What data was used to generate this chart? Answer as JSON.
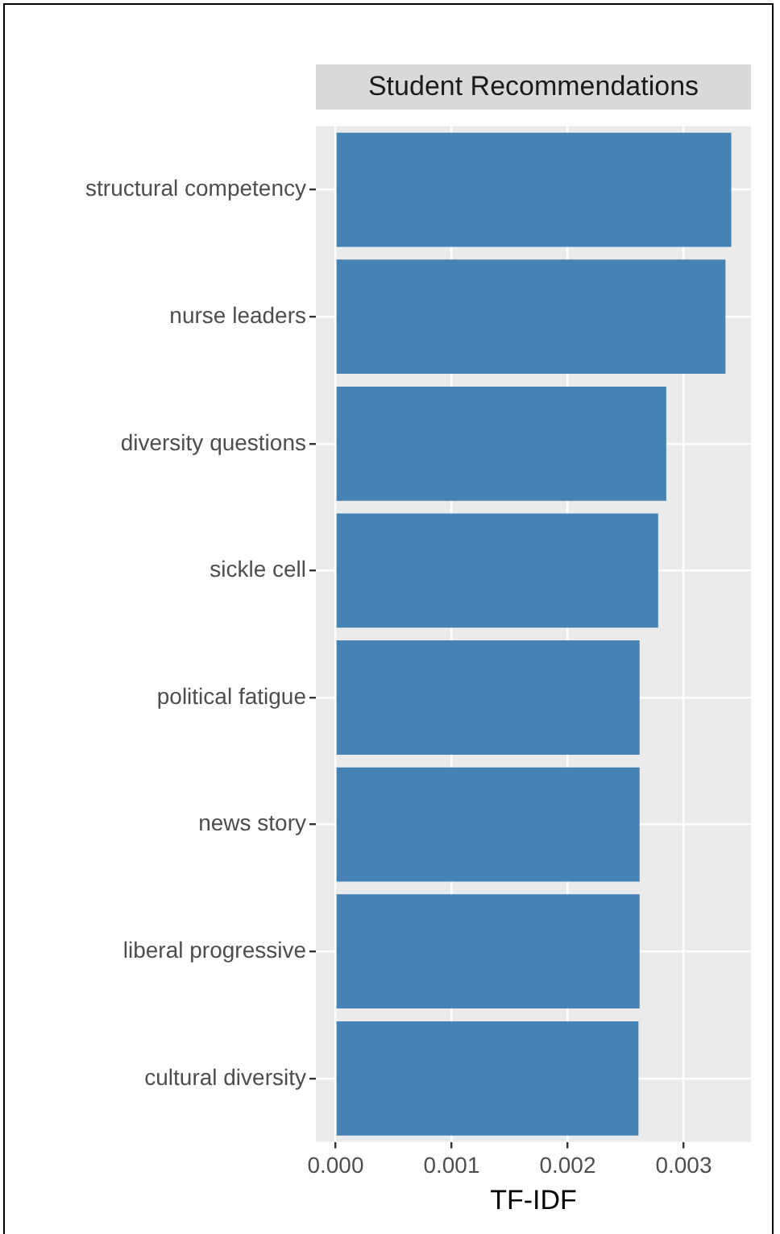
{
  "chart_data": {
    "type": "bar",
    "orientation": "horizontal",
    "title": "Student Recommendations",
    "xlabel": "TF-IDF",
    "categories": [
      "structural competency",
      "nurse leaders",
      "diversity questions",
      "sickle cell",
      "political fatigue",
      "news story",
      "liberal progressive",
      "cultural diversity"
    ],
    "values": [
      0.00341,
      0.00336,
      0.00285,
      0.00278,
      0.00262,
      0.00262,
      0.00262,
      0.00261
    ],
    "color": "#4682b4",
    "xlim": [
      -0.00017,
      0.00358
    ],
    "xticks": [
      {
        "value": 0,
        "label": "0.000"
      },
      {
        "value": 0.001,
        "label": "0.001"
      },
      {
        "value": 0.002,
        "label": "0.002"
      },
      {
        "value": 0.003,
        "label": "0.003"
      }
    ],
    "grid": true,
    "legend": false
  }
}
